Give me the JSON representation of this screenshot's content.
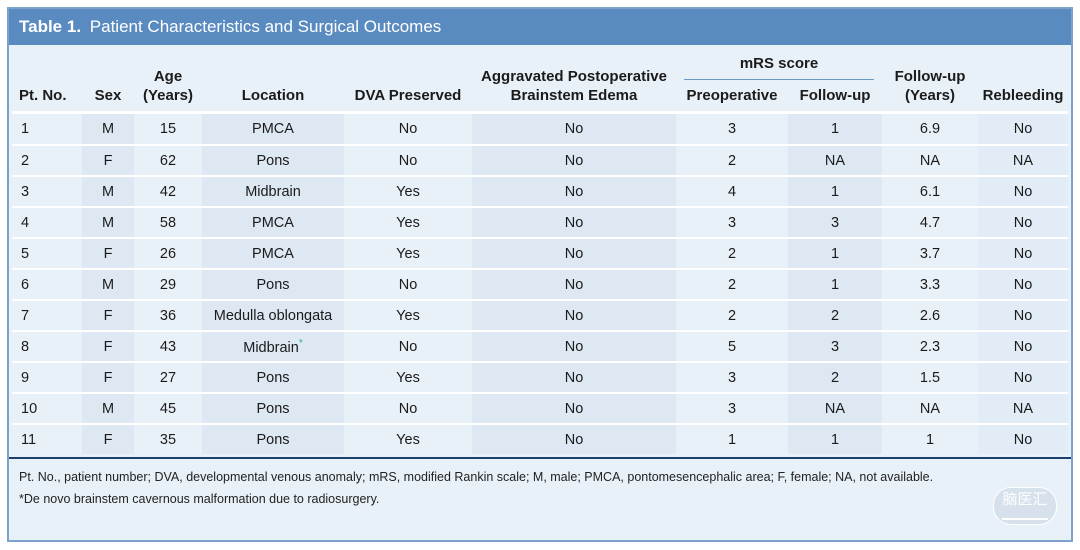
{
  "table_label": "Table 1.",
  "table_title": "Patient Characteristics and Surgical Outcomes",
  "headers": {
    "pt_no": "Pt. No.",
    "sex": "Sex",
    "age_1": "Age",
    "age_2": "(Years)",
    "location": "Location",
    "dva": "DVA Preserved",
    "edema_1": "Aggravated Postoperative",
    "edema_2": "Brainstem Edema",
    "mrs_group": "mRS score",
    "preop": "Preoperative",
    "followup": "Follow-up",
    "fu_years_1": "Follow-up",
    "fu_years_2": "(Years)",
    "rebleeding": "Rebleeding"
  },
  "rows": [
    {
      "pt": "1",
      "sex": "M",
      "age": "15",
      "loc": "PMCA",
      "dva": "No",
      "edema": "No",
      "pre": "3",
      "fu": "1",
      "years": "6.9",
      "reb": "No"
    },
    {
      "pt": "2",
      "sex": "F",
      "age": "62",
      "loc": "Pons",
      "dva": "No",
      "edema": "No",
      "pre": "2",
      "fu": "NA",
      "years": "NA",
      "reb": "NA"
    },
    {
      "pt": "3",
      "sex": "M",
      "age": "42",
      "loc": "Midbrain",
      "dva": "Yes",
      "edema": "No",
      "pre": "4",
      "fu": "1",
      "years": "6.1",
      "reb": "No"
    },
    {
      "pt": "4",
      "sex": "M",
      "age": "58",
      "loc": "PMCA",
      "dva": "Yes",
      "edema": "No",
      "pre": "3",
      "fu": "3",
      "years": "4.7",
      "reb": "No"
    },
    {
      "pt": "5",
      "sex": "F",
      "age": "26",
      "loc": "PMCA",
      "dva": "Yes",
      "edema": "No",
      "pre": "2",
      "fu": "1",
      "years": "3.7",
      "reb": "No"
    },
    {
      "pt": "6",
      "sex": "M",
      "age": "29",
      "loc": "Pons",
      "dva": "No",
      "edema": "No",
      "pre": "2",
      "fu": "1",
      "years": "3.3",
      "reb": "No"
    },
    {
      "pt": "7",
      "sex": "F",
      "age": "36",
      "loc": "Medulla oblongata",
      "dva": "Yes",
      "edema": "No",
      "pre": "2",
      "fu": "2",
      "years": "2.6",
      "reb": "No"
    },
    {
      "pt": "8",
      "sex": "F",
      "age": "43",
      "loc": "Midbrain",
      "loc_mark": "*",
      "dva": "No",
      "edema": "No",
      "pre": "5",
      "fu": "3",
      "years": "2.3",
      "reb": "No"
    },
    {
      "pt": "9",
      "sex": "F",
      "age": "27",
      "loc": "Pons",
      "dva": "Yes",
      "edema": "No",
      "pre": "3",
      "fu": "2",
      "years": "1.5",
      "reb": "No"
    },
    {
      "pt": "10",
      "sex": "M",
      "age": "45",
      "loc": "Pons",
      "dva": "No",
      "edema": "No",
      "pre": "3",
      "fu": "NA",
      "years": "NA",
      "reb": "NA"
    },
    {
      "pt": "11",
      "sex": "F",
      "age": "35",
      "loc": "Pons",
      "dva": "Yes",
      "edema": "No",
      "pre": "1",
      "fu": "1",
      "years": "1",
      "reb": "No"
    }
  ],
  "footnotes": [
    "Pt. No., patient number; DVA, developmental venous anomaly; mRS, modified Rankin scale; M, male; PMCA, pontomesencephalic area; F, female; NA, not available.",
    "*De novo brainstem cavernous malformation due to radiosurgery."
  ],
  "watermark": "脑医汇",
  "colors": {
    "title_bar": "#5a8bc0",
    "background": "#e9f1f8",
    "alt_column": "#dde8f3",
    "rule": "#1c3f6e"
  }
}
